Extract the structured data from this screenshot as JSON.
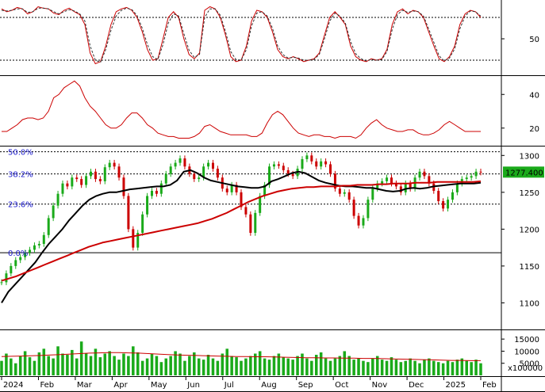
{
  "chart_data": {
    "type": "line",
    "panels": [
      {
        "id": "stochastic",
        "ylim": [
          0,
          100
        ],
        "y_ticks": [
          {
            "value": 50,
            "label": "50"
          }
        ],
        "reference_lines": [
          20,
          80
        ],
        "series": [
          {
            "color": "#cc0000",
            "style": "solid",
            "values": [
              92,
              88,
              90,
              94,
              92,
              85,
              88,
              95,
              93,
              92,
              86,
              84,
              90,
              93,
              88,
              84,
              70,
              30,
              15,
              18,
              40,
              70,
              88,
              92,
              94,
              90,
              80,
              60,
              35,
              20,
              22,
              50,
              80,
              88,
              80,
              50,
              28,
              22,
              30,
              90,
              95,
              92,
              80,
              55,
              25,
              18,
              20,
              40,
              75,
              90,
              88,
              80,
              60,
              35,
              25,
              22,
              25,
              22,
              18,
              20,
              22,
              30,
              55,
              80,
              88,
              80,
              70,
              40,
              25,
              20,
              18,
              22,
              20,
              22,
              35,
              70,
              88,
              92,
              85,
              90,
              88,
              80,
              60,
              40,
              22,
              18,
              25,
              40,
              70,
              85,
              90,
              88,
              80
            ]
          },
          {
            "color": "#333333",
            "style": "dashed",
            "values": [
              90,
              89,
              90,
              92,
              92,
              87,
              88,
              93,
              93,
              92,
              88,
              85,
              88,
              91,
              89,
              85,
              75,
              40,
              20,
              17,
              35,
              62,
              82,
              90,
              93,
              91,
              83,
              65,
              42,
              25,
              21,
              42,
              72,
              85,
              82,
              57,
              34,
              24,
              28,
              80,
              92,
              92,
              83,
              60,
              32,
              21,
              20,
              35,
              68,
              86,
              88,
              82,
              65,
              40,
              28,
              23,
              24,
              23,
              20,
              20,
              21,
              28,
              50,
              75,
              86,
              82,
              72,
              46,
              29,
              22,
              19,
              21,
              20,
              21,
              32,
              63,
              84,
              90,
              87,
              89,
              88,
              82,
              64,
              45,
              26,
              19,
              23,
              36,
              64,
              82,
              89,
              88,
              82
            ]
          }
        ]
      },
      {
        "id": "adx",
        "ylim": [
          10,
          50
        ],
        "y_ticks": [
          {
            "value": 40,
            "label": "40"
          },
          {
            "value": 20,
            "label": "20"
          }
        ],
        "series": [
          {
            "color": "#cc0000",
            "style": "solid",
            "values": [
              18,
              18,
              20,
              22,
              25,
              26,
              26,
              25,
              26,
              30,
              38,
              40,
              44,
              46,
              48,
              45,
              38,
              33,
              30,
              26,
              22,
              20,
              20,
              22,
              26,
              29,
              29,
              26,
              22,
              20,
              17,
              16,
              15,
              15,
              14,
              14,
              14,
              15,
              17,
              21,
              22,
              20,
              18,
              17,
              16,
              16,
              16,
              16,
              15,
              15,
              17,
              23,
              28,
              30,
              28,
              24,
              20,
              17,
              16,
              15,
              16,
              16,
              15,
              15,
              14,
              15,
              15,
              15,
              14,
              16,
              20,
              23,
              25,
              22,
              20,
              19,
              18,
              18,
              19,
              19,
              17,
              16,
              16,
              17,
              19,
              22,
              24,
              22,
              20,
              18,
              18,
              18,
              18
            ]
          }
        ]
      },
      {
        "id": "price",
        "ylim": [
          1065,
          1310
        ],
        "y_ticks": [
          {
            "value": 1300,
            "label": "1300"
          },
          {
            "value": 1250,
            "label": "1250"
          },
          {
            "value": 1200,
            "label": "1200"
          },
          {
            "value": 1150,
            "label": "1150"
          },
          {
            "value": 1100,
            "label": "1100"
          }
        ],
        "last_price_label": "1277.400",
        "fibonacci": [
          {
            "label": "50.0%",
            "value": 1305
          },
          {
            "label": "38.2%",
            "value": 1275
          },
          {
            "label": "23.6%",
            "value": 1234
          },
          {
            "label": "0.0%",
            "value": 1168
          }
        ],
        "series": [
          {
            "name": "",
            "color": "#1aaa1a",
            "style": "candles",
            "values": [
              1128,
              1140,
              1150,
              1158,
              1162,
              1168,
              1172,
              1178,
              1180,
              1192,
              1215,
              1232,
              1248,
              1262,
              1258,
              1270,
              1268,
              1260,
              1272,
              1278,
              1268,
              1265,
              1284,
              1290,
              1285,
              1270,
              1245,
              1200,
              1175,
              1195,
              1220,
              1245,
              1252,
              1248,
              1262,
              1275,
              1285,
              1290,
              1296,
              1285,
              1275,
              1268,
              1270,
              1285,
              1290,
              1282,
              1270,
              1255,
              1250,
              1260,
              1250,
              1230,
              1220,
              1195,
              1222,
              1245,
              1260,
              1285,
              1288,
              1286,
              1280,
              1275,
              1272,
              1282,
              1295,
              1300,
              1292,
              1285,
              1292,
              1288,
              1275,
              1255,
              1248,
              1250,
              1240,
              1218,
              1205,
              1215,
              1240,
              1255,
              1262,
              1265,
              1270,
              1262,
              1258,
              1250,
              1262,
              1255,
              1270,
              1278,
              1272,
              1262,
              1252,
              1238,
              1228,
              1240,
              1250,
              1262,
              1268,
              1270,
              1272,
              1278,
              1277
            ]
          },
          {
            "name": "",
            "color": "#000000",
            "style": "solid",
            "values": [
              1100,
              1115,
              1125,
              1135,
              1145,
              1155,
              1168,
              1180,
              1190,
              1200,
              1212,
              1222,
              1232,
              1240,
              1245,
              1248,
              1250,
              1250,
              1252,
              1254,
              1255,
              1256,
              1257,
              1258,
              1258,
              1260,
              1266,
              1278,
              1280,
              1276,
              1270,
              1266,
              1264,
              1262,
              1260,
              1258,
              1257,
              1256,
              1256,
              1258,
              1265,
              1268,
              1272,
              1276,
              1278,
              1276,
              1271,
              1266,
              1263,
              1261,
              1259,
              1258,
              1258,
              1257,
              1256,
              1256,
              1254,
              1252,
              1251,
              1252,
              1255,
              1256,
              1255,
              1256,
              1258,
              1259,
              1260,
              1261,
              1262,
              1262,
              1262,
              1263
            ]
          },
          {
            "name": "",
            "color": "#cc0000",
            "style": "solid",
            "values": [
              1130,
              1133,
              1136,
              1140,
              1144,
              1148,
              1152,
              1156,
              1160,
              1164,
              1168,
              1172,
              1176,
              1179,
              1182,
              1184,
              1186,
              1188,
              1190,
              1192,
              1194,
              1196,
              1198,
              1200,
              1202,
              1204,
              1206,
              1208,
              1211,
              1214,
              1218,
              1222,
              1227,
              1232,
              1237,
              1241,
              1245,
              1248,
              1251,
              1253,
              1255,
              1256,
              1257,
              1257,
              1258,
              1258,
              1258,
              1259,
              1259,
              1260,
              1260,
              1260,
              1261,
              1261,
              1262,
              1262,
              1262,
              1263,
              1263,
              1263,
              1264,
              1264,
              1264,
              1264,
              1264,
              1264,
              1265
            ]
          }
        ]
      },
      {
        "id": "volume",
        "ylim": [
          0,
          18000
        ],
        "y_ticks": [
          {
            "value": 15000,
            "label": "15000"
          },
          {
            "value": 10000,
            "label": "10000"
          },
          {
            "value": 5000,
            "label": "5000"
          }
        ],
        "unit_label": "x100000",
        "series": [
          {
            "color": "#1aaa1a",
            "style": "bars",
            "values": [
              6000,
              9000,
              7000,
              5000,
              8000,
              10000,
              7500,
              6000,
              9500,
              11000,
              8000,
              7000,
              12000,
              9000,
              8500,
              10500,
              7000,
              14000,
              9000,
              8000,
              11000,
              7500,
              9000,
              10000,
              8000,
              6500,
              9000,
              8000,
              12000,
              9500,
              6000,
              7000,
              9000,
              8000,
              5500,
              7000,
              8000,
              10000,
              9000,
              6000,
              8000,
              9500,
              7000,
              6500,
              8500,
              7000,
              6000,
              9000,
              11000,
              8000,
              7500,
              6000,
              7000,
              8000,
              9000,
              10000,
              7000,
              6500,
              8000,
              9000,
              7500,
              7000,
              6500,
              8000,
              9000,
              7000,
              6000,
              8500,
              9500,
              7000,
              6000,
              7000,
              8000,
              10000,
              8000,
              6500,
              7000,
              6000,
              5500,
              7000,
              8000,
              6500,
              6000,
              7500,
              6500,
              5500,
              6000,
              7000,
              6000,
              5000,
              6500,
              7000,
              6000,
              5500,
              5000,
              6000,
              5500,
              6500,
              7000,
              6000,
              5500,
              6500,
              5000
            ]
          },
          {
            "color": "#cc0000",
            "style": "solid",
            "values": [
              7800,
              7900,
              8000,
              8100,
              8200,
              8400,
              8600,
              8800,
              9000,
              9200,
              9300,
              9400,
              9400,
              9300,
              9200,
              9000,
              8800,
              8600,
              8400,
              8300,
              8200,
              8100,
              8000,
              7900,
              7800,
              7800,
              7700,
              7700,
              7600,
              7500,
              7400,
              7300,
              7300,
              7200,
              7200,
              7100,
              7100,
              7000,
              7000,
              6900,
              6800,
              6700,
              6600,
              6500,
              6400,
              6300,
              6200,
              6200,
              6100,
              6100
            ]
          }
        ]
      }
    ],
    "x_labels": [
      "2024",
      "Feb",
      "Mar",
      "Apr",
      "May",
      "Jun",
      "Jul",
      "Aug",
      "Sep",
      "Oct",
      "Nov",
      "Dec",
      "2025",
      "Feb"
    ]
  }
}
